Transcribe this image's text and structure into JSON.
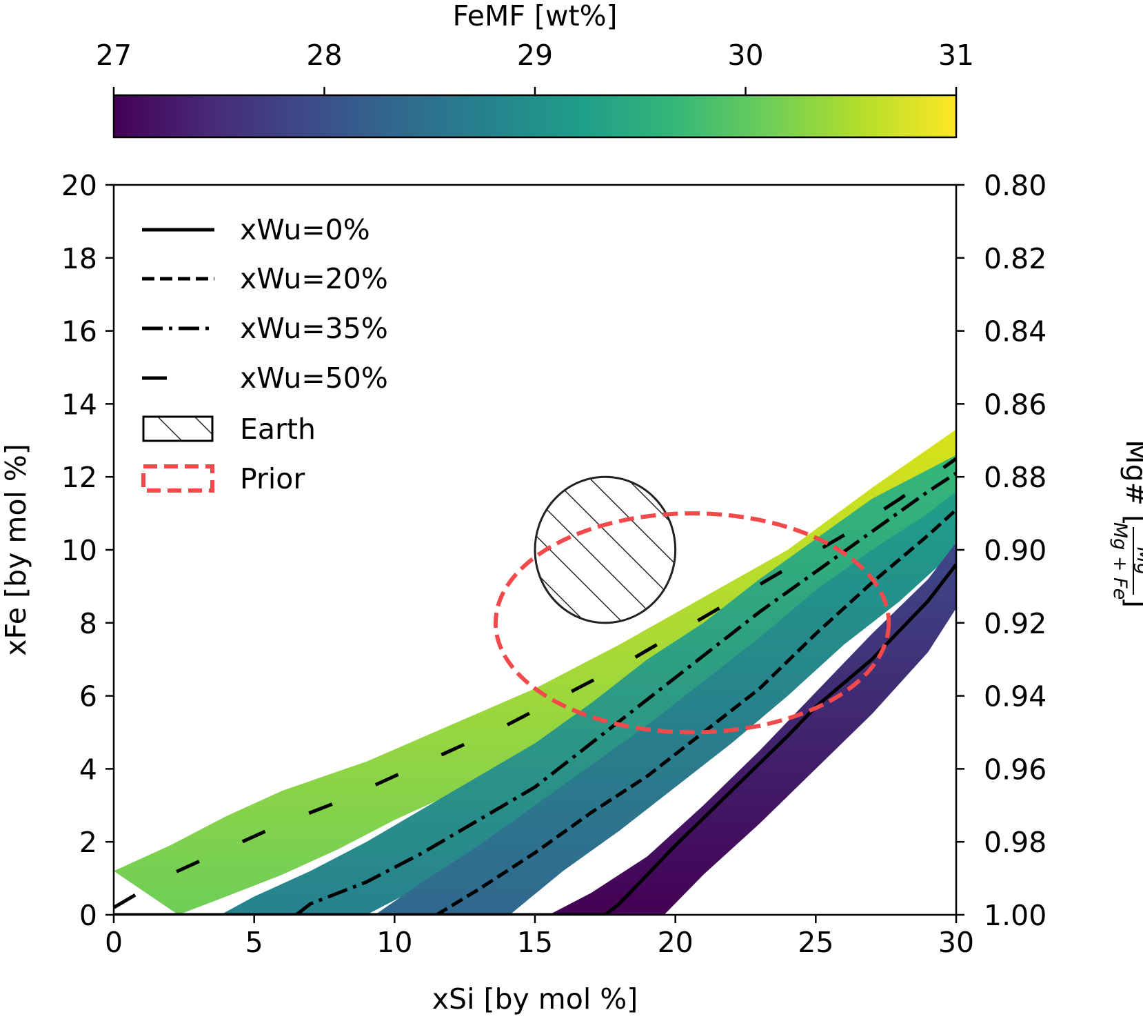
{
  "chart_data": {
    "type": "line",
    "xlabel": "xSi [by mol %]",
    "ylabel": "xFe [by mol %]",
    "y2label_prefix": "Mg# [",
    "y2label_fraction_num": "Mg",
    "y2label_fraction_den": "Mg + Fe",
    "y2label_suffix": "]",
    "xlim": [
      0,
      30
    ],
    "ylim": [
      0,
      20
    ],
    "x_ticks": [
      "0",
      "5",
      "10",
      "15",
      "20",
      "25",
      "30"
    ],
    "x_tick_values": [
      0,
      5,
      10,
      15,
      20,
      25,
      30
    ],
    "y_ticks": [
      "0",
      "2",
      "4",
      "6",
      "8",
      "10",
      "12",
      "14",
      "16",
      "18",
      "20"
    ],
    "y_tick_values": [
      0,
      2,
      4,
      6,
      8,
      10,
      12,
      14,
      16,
      18,
      20
    ],
    "y2_ticks": [
      "1.00",
      "0.98",
      "0.96",
      "0.94",
      "0.92",
      "0.90",
      "0.88",
      "0.86",
      "0.84",
      "0.82",
      "0.80"
    ],
    "colorbar": {
      "label": "FeMF [wt%]",
      "range": [
        27,
        31
      ],
      "ticks": [
        "27",
        "28",
        "29",
        "30",
        "31"
      ],
      "tick_values": [
        27,
        28,
        29,
        30,
        31
      ],
      "colormap": [
        "#440154",
        "#482878",
        "#3e4989",
        "#31688e",
        "#26828e",
        "#1f9e89",
        "#35b779",
        "#6ece58",
        "#b5de2b",
        "#fde725"
      ]
    },
    "series": [
      {
        "name": "xWu=0%",
        "dash": "solid",
        "x": [
          0,
          17.5,
          18,
          20,
          22,
          24,
          25,
          27,
          29,
          30
        ],
        "y": [
          0,
          0,
          0.3,
          1.9,
          3.4,
          4.9,
          5.7,
          7.0,
          8.6,
          9.6
        ],
        "band_upper": [
          [
            15.5,
            0
          ],
          [
            17,
            0.6
          ],
          [
            19,
            1.6
          ],
          [
            21,
            3.0
          ],
          [
            23,
            4.5
          ],
          [
            25,
            6.1
          ],
          [
            27,
            7.7
          ],
          [
            29,
            9.2
          ],
          [
            30,
            10.2
          ]
        ],
        "band_lower": [
          [
            19.6,
            0
          ],
          [
            21,
            1.1
          ],
          [
            23,
            2.5
          ],
          [
            25,
            4.0
          ],
          [
            27,
            5.5
          ],
          [
            29,
            7.2
          ],
          [
            30,
            8.4
          ]
        ],
        "band_color_lower": "#440154",
        "band_color_upper": "#3e4989"
      },
      {
        "name": "xWu=20%",
        "dash": "dashed",
        "x": [
          0,
          11.5,
          13,
          15,
          17,
          19,
          21,
          23,
          25,
          27,
          29,
          30
        ],
        "y": [
          0,
          0,
          0.7,
          1.7,
          2.8,
          3.8,
          5.0,
          6.2,
          7.7,
          9.1,
          10.4,
          11.1
        ],
        "band_upper": [
          [
            9.3,
            0
          ],
          [
            11,
            0.9
          ],
          [
            13,
            1.9
          ],
          [
            15,
            3.0
          ],
          [
            17,
            4.1
          ],
          [
            19,
            5.2
          ],
          [
            21,
            6.4
          ],
          [
            23,
            7.6
          ],
          [
            25,
            8.9
          ],
          [
            27,
            10.0
          ],
          [
            29,
            11.0
          ],
          [
            30,
            11.6
          ]
        ],
        "band_lower": [
          [
            14.1,
            0
          ],
          [
            16,
            1.2
          ],
          [
            18,
            2.3
          ],
          [
            20,
            3.5
          ],
          [
            22,
            4.7
          ],
          [
            24,
            6.0
          ],
          [
            26,
            7.4
          ],
          [
            28,
            8.6
          ],
          [
            30,
            10.0
          ]
        ],
        "band_color_lower": "#31688e",
        "band_color_upper": "#1f9e89"
      },
      {
        "name": "xWu=35%",
        "dash": "dashdot",
        "x": [
          0,
          6.5,
          7,
          9,
          11,
          13,
          15,
          17,
          19,
          21,
          23,
          25,
          27,
          29,
          30
        ],
        "y": [
          0,
          0,
          0.3,
          0.9,
          1.7,
          2.6,
          3.5,
          4.7,
          5.9,
          7.1,
          8.3,
          9.4,
          10.5,
          11.6,
          12.1
        ],
        "band_upper": [
          [
            3.8,
            0
          ],
          [
            5,
            0.5
          ],
          [
            7,
            1.2
          ],
          [
            9,
            2.0
          ],
          [
            11,
            2.9
          ],
          [
            13,
            3.8
          ],
          [
            15,
            4.7
          ],
          [
            17,
            5.8
          ],
          [
            19,
            7.0
          ],
          [
            21,
            8.0
          ],
          [
            23,
            9.2
          ],
          [
            25,
            10.3
          ],
          [
            27,
            11.4
          ],
          [
            30,
            12.6
          ]
        ],
        "band_lower": [
          [
            9.0,
            0
          ],
          [
            10,
            0.4
          ],
          [
            12,
            1.2
          ],
          [
            14,
            2.1
          ],
          [
            16,
            3.0
          ],
          [
            18,
            4.0
          ],
          [
            20,
            5.1
          ],
          [
            22,
            6.3
          ],
          [
            24,
            7.5
          ],
          [
            26,
            8.7
          ],
          [
            28,
            9.9
          ],
          [
            30,
            11.0
          ]
        ],
        "band_color_lower": "#26828e",
        "band_color_upper": "#35b779"
      },
      {
        "name": "xWu=50%",
        "dash": "longdash",
        "x": [
          0,
          2,
          4,
          6,
          8,
          10,
          12,
          14,
          16,
          18,
          20,
          22,
          24,
          26,
          28,
          30
        ],
        "y": [
          0.2,
          1.1,
          1.8,
          2.5,
          3.1,
          3.8,
          4.5,
          5.2,
          6.0,
          6.8,
          7.7,
          8.6,
          9.5,
          10.4,
          11.4,
          12.5
        ],
        "band_upper": [
          [
            0,
            1.2
          ],
          [
            2,
            1.9
          ],
          [
            4,
            2.7
          ],
          [
            6,
            3.4
          ],
          [
            9,
            4.2
          ],
          [
            12,
            5.2
          ],
          [
            15,
            6.2
          ],
          [
            18,
            7.4
          ],
          [
            21,
            8.7
          ],
          [
            24,
            10.0
          ],
          [
            27,
            11.7
          ],
          [
            30,
            13.3
          ]
        ],
        "band_lower": [
          [
            2.3,
            0
          ],
          [
            4,
            0.5
          ],
          [
            6,
            1.1
          ],
          [
            8,
            1.8
          ],
          [
            10,
            2.6
          ],
          [
            12,
            3.3
          ],
          [
            14,
            4.1
          ],
          [
            16,
            4.9
          ],
          [
            18,
            5.8
          ],
          [
            20,
            6.8
          ],
          [
            22,
            7.8
          ],
          [
            24,
            8.9
          ],
          [
            26,
            10.0
          ],
          [
            28,
            11.0
          ],
          [
            30,
            11.8
          ]
        ],
        "band_color_lower": "#6ece58",
        "band_color_upper": "#d8e219"
      }
    ],
    "earth": {
      "label": "Earth",
      "center": [
        17.5,
        10
      ],
      "radius_x": 2.5,
      "radius_y": 2
    },
    "prior": {
      "label": "Prior",
      "center": [
        20.6,
        8
      ],
      "radius_x": 7.0,
      "radius_y": 3,
      "color": "#f24a4a"
    },
    "legend": {
      "location": "upper-left",
      "entries": [
        "xWu=0%",
        "xWu=20%",
        "xWu=35%",
        "xWu=50%",
        "Earth",
        "Prior"
      ]
    }
  }
}
